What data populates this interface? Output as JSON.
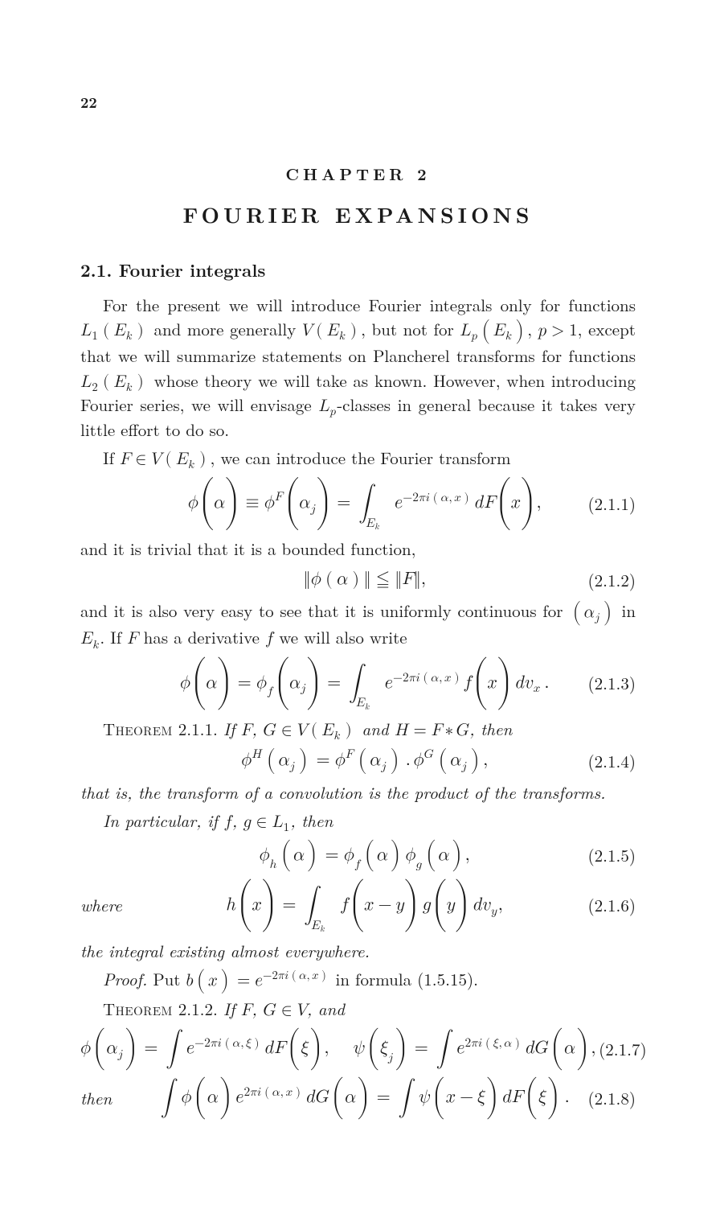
{
  "page_number": "22",
  "chapter_label": "CHAPTER 2",
  "chapter_title": "FOURIER EXPANSIONS",
  "section_heading": "2.1.  Fourier integrals",
  "para1a": "For the present we will introduce Fourier integrals only for functions ",
  "para1b": " and more generally ",
  "para1c": ", but not for ",
  "para1d": ", ",
  "para1e": ", except that we will summarize statements on Plancherel transforms for functions ",
  "para1f": " whose theory we will take as known. However, when introducing Fourier series, we will envisage ",
  "para1g": "-classes in general because it takes very little effort to do so.",
  "para2a": "If ",
  "para2b": ", we can introduce the Fourier transform",
  "eqnum_1": "(2.1.1)",
  "para3": "and it is trivial that it is a bounded function,",
  "eqnum_2": "(2.1.2)",
  "para4a": "and it is also very easy to see that it is uniformly continuous for ",
  "para4b": " in ",
  "para4c": ". If ",
  "para4d": " has a derivative ",
  "para4e": " we will also write",
  "eqnum_3": "(2.1.3)",
  "thm1_label": "Theorem",
  "thm1_num": " 2.1.1.  ",
  "thm1_a": "If ",
  "thm1_b": ", ",
  "thm1_c": " and ",
  "thm1_d": ", then",
  "eqnum_4": "(2.1.4)",
  "para5": "that is, the transform of a convolution is the product of the transforms.",
  "para6a": "In particular, if ",
  "para6b": ", ",
  "para6c": ", then",
  "eqnum_5": "(2.1.5)",
  "where_label": "where",
  "eqnum_6": "(2.1.6)",
  "para7": "the integral existing almost everywhere.",
  "proof_label": "Proof.",
  "proof_a": " Put ",
  "proof_b": " in formula (1.5.15).",
  "thm2_label": "Theorem",
  "thm2_num": " 2.1.2.  ",
  "thm2_a": "If ",
  "thm2_b": ", ",
  "thm2_c": ", and",
  "eqnum_7": "(2.1.7)",
  "then_label": "then",
  "eqnum_8": "(2.1.8)"
}
